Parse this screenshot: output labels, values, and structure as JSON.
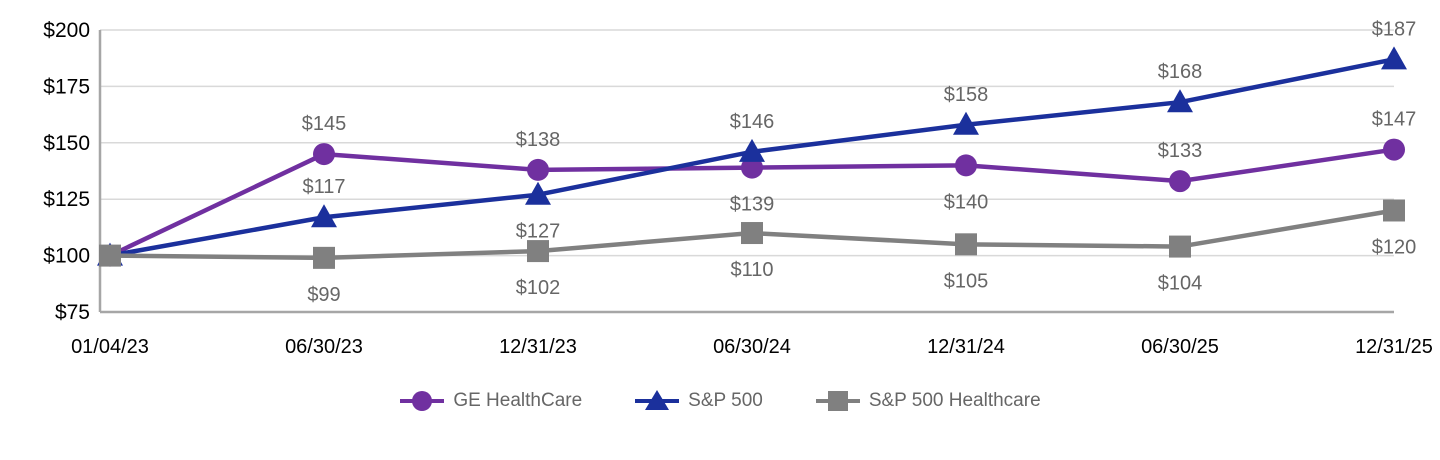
{
  "chart_data": {
    "type": "line",
    "title": "",
    "x_categories": [
      "01/04/23",
      "06/30/23",
      "12/31/23",
      "06/30/24",
      "12/31/24",
      "06/30/25",
      "12/31/25"
    ],
    "y_axis": {
      "min": 75,
      "max": 200,
      "tick_step": 25,
      "tick_prefix": "$",
      "tick_labels": [
        "$75",
        "$100",
        "$125",
        "$150",
        "$175",
        "$200"
      ]
    },
    "grid": true,
    "legend_position": "bottom",
    "data_label_prefix": "$",
    "series": [
      {
        "name": "GE HealthCare",
        "color": "#7030A0",
        "marker": "circle",
        "values": [
          100,
          145,
          138,
          139,
          140,
          133,
          147
        ],
        "data_labels": [
          null,
          "$145",
          "$138",
          "$139",
          "$140",
          "$133",
          "$147"
        ],
        "label_positions": [
          null,
          "above",
          "above",
          "below",
          "below",
          "above",
          "above"
        ]
      },
      {
        "name": "S&P 500",
        "color": "#1B309C",
        "marker": "triangle",
        "values": [
          100,
          117,
          127,
          146,
          158,
          168,
          187
        ],
        "data_labels": [
          null,
          "$117",
          "$127",
          "$146",
          "$158",
          "$168",
          "$187"
        ],
        "label_positions": [
          null,
          "above",
          "below",
          "above",
          "above",
          "above",
          "above"
        ]
      },
      {
        "name": "S&P 500 Healthcare",
        "color": "#808080",
        "marker": "square",
        "values": [
          100,
          99,
          102,
          110,
          105,
          104,
          120
        ],
        "data_labels": [
          null,
          "$99",
          "$102",
          "$110",
          "$105",
          "$104",
          "$120"
        ],
        "label_positions": [
          null,
          "below",
          "below",
          "below",
          "below",
          "below",
          "below"
        ]
      }
    ],
    "colors": {
      "background": "#FFFFFF",
      "gridline": "#D9D9D9",
      "axis_line": "#A6A6A6",
      "axis_text": "#000000",
      "data_label_text": "#666666",
      "legend_text": "#666666"
    }
  }
}
